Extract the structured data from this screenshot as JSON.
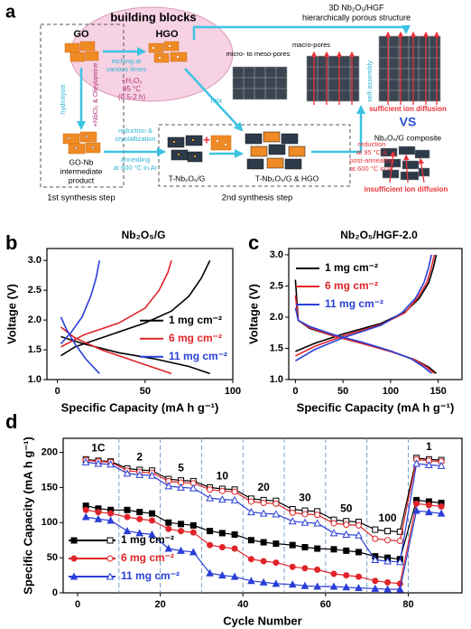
{
  "diagram": {
    "panel": "a",
    "texts": [
      "building blocks",
      "GO",
      "HGO",
      "etching at",
      "various times",
      "+H₂O₂",
      "95 °C",
      "(0.5-2 h)",
      "hydrolysis",
      "+NbCl₅ & Oleylamine",
      "GO-Nb",
      "intermediate",
      "product",
      "reduction &",
      "crystallization",
      "annealing",
      "at 600 °C in Ar",
      "mix",
      "1st synthesis step",
      "2nd synthesis step",
      "T-Nb₂O₅/G",
      "T-Nb₂O₅/G & HGO",
      "3D Nb₂O₅/HGF",
      "hierarchically porous structure",
      "micro- to meso-pores",
      "macro-pores",
      "sufficient ion diffusion",
      "VS",
      "Nb₂O₅/G composite",
      "insufficient ion diffusion",
      "self-assembly",
      "reduction",
      "at 95 °C &",
      "post-annealing",
      "at 600 °C in Ar",
      "+"
    ]
  },
  "chart_data": [
    {
      "panel": "b",
      "type": "line",
      "title": "Nb₂O₅/G",
      "x_label": "Specific Capacity (mA h g⁻¹)",
      "y_label": "Voltage (V)",
      "xlim": [
        -6,
        100
      ],
      "xticks": [
        0,
        50,
        100
      ],
      "ylim": [
        1,
        3.2
      ],
      "yticks": [
        {
          "value": 1,
          "label": "1.0"
        },
        1.5,
        {
          "value": 2,
          "label": "2.0"
        },
        2.5,
        {
          "value": 3,
          "label": "3.0"
        }
      ],
      "legend": "right",
      "series": [
        {
          "name": "1 mg cm⁻²",
          "color": "#000000",
          "x": [
            2,
            15,
            35,
            55,
            75,
            87,
            null,
            2,
            10,
            30,
            50,
            65,
            75,
            82,
            87
          ],
          "values": [
            1.72,
            1.6,
            1.45,
            1.35,
            1.22,
            1.1,
            null,
            1.4,
            1.55,
            1.75,
            1.95,
            2.15,
            2.4,
            2.7,
            3.0
          ]
        },
        {
          "name": "6 mg cm⁻²",
          "color": "#e0242a",
          "x": [
            2,
            10,
            25,
            45,
            65,
            null,
            2,
            15,
            35,
            50,
            58,
            63,
            65
          ],
          "values": [
            1.88,
            1.7,
            1.5,
            1.3,
            1.1,
            null,
            1.55,
            1.75,
            1.95,
            2.2,
            2.5,
            2.8,
            3.0
          ]
        },
        {
          "name": "11 mg cm⁻²",
          "color": "#2a3fd6",
          "x": [
            2,
            5,
            10,
            16,
            24,
            null,
            2,
            8,
            14,
            19,
            22,
            24
          ],
          "values": [
            2.05,
            1.85,
            1.6,
            1.35,
            1.1,
            null,
            1.6,
            1.8,
            2.05,
            2.4,
            2.7,
            3.0
          ]
        }
      ]
    },
    {
      "panel": "c",
      "type": "line",
      "title": "Nb₂O₅/HGF-2.0",
      "x_label": "Specific Capacity (mA h g⁻¹)",
      "y_label": "Voltage (V)",
      "xlim": [
        -7,
        175
      ],
      "xticks": [
        0,
        50,
        100,
        150
      ],
      "ylim": [
        1,
        3.1
      ],
      "yticks": [
        {
          "value": 1,
          "label": "1.0"
        },
        1.5,
        {
          "value": 2,
          "label": "2.0"
        },
        2.5,
        {
          "value": 3,
          "label": "3.0"
        }
      ],
      "legend": "upper left",
      "series": [
        {
          "name": "1 mg cm⁻²",
          "color": "#000000",
          "x": [
            0,
            3,
            15,
            40,
            70,
            100,
            125,
            140,
            148,
            null,
            0,
            20,
            50,
            90,
            115,
            130,
            140,
            145,
            148
          ],
          "values": [
            2.6,
            1.95,
            1.82,
            1.7,
            1.58,
            1.45,
            1.32,
            1.2,
            1.1,
            null,
            1.45,
            1.58,
            1.73,
            1.9,
            2.08,
            2.3,
            2.55,
            2.8,
            3.0
          ]
        },
        {
          "name": "6 mg cm⁻²",
          "color": "#e0242a",
          "x": [
            0,
            3,
            15,
            40,
            70,
            100,
            125,
            138,
            146,
            null,
            0,
            20,
            50,
            90,
            115,
            128,
            138,
            143,
            146
          ],
          "values": [
            2.35,
            1.95,
            1.83,
            1.7,
            1.58,
            1.45,
            1.32,
            1.2,
            1.1,
            null,
            1.38,
            1.53,
            1.7,
            1.88,
            2.07,
            2.3,
            2.55,
            2.8,
            3.0
          ]
        },
        {
          "name": "11 mg cm⁻²",
          "color": "#2a3fd6",
          "x": [
            0,
            3,
            15,
            40,
            70,
            100,
            122,
            135,
            143,
            null,
            0,
            20,
            50,
            90,
            112,
            126,
            135,
            140,
            143
          ],
          "values": [
            2.15,
            1.95,
            1.85,
            1.72,
            1.6,
            1.46,
            1.33,
            1.2,
            1.1,
            null,
            1.3,
            1.48,
            1.67,
            1.87,
            2.07,
            2.3,
            2.55,
            2.8,
            3.0
          ]
        }
      ]
    },
    {
      "panel": "d",
      "type": "line",
      "x_label": "Cycle Number",
      "y_label": "Specific Capacity (mA h g⁻¹)",
      "xlim": [
        -3.5,
        93
      ],
      "xticks": [
        0,
        20,
        40,
        60,
        80
      ],
      "ylim": [
        0,
        220
      ],
      "yticks": [
        0,
        50,
        100,
        150,
        200
      ],
      "legend": "lower left",
      "rate_labels": [
        "1C",
        "2",
        "5",
        "10",
        "20",
        "30",
        "50",
        "100",
        "1"
      ],
      "x": [
        2,
        5,
        8,
        12,
        15,
        18,
        22,
        25,
        28,
        32,
        35,
        38,
        42,
        45,
        48,
        52,
        55,
        58,
        62,
        65,
        68,
        72,
        75,
        78,
        82,
        85,
        88
      ],
      "series": [
        {
          "name": "1 mg cm⁻²",
          "color": "#000000",
          "marker": "square",
          "values": [
            124,
            120,
            118,
            118,
            115,
            113,
            100,
            98,
            96,
            88,
            85,
            83,
            75,
            72,
            70,
            68,
            65,
            63,
            62,
            60,
            58,
            52,
            50,
            48,
            132,
            130,
            128
          ],
          "open_values": [
            190,
            188,
            187,
            177,
            175,
            174,
            162,
            160,
            159,
            150,
            148,
            147,
            134,
            132,
            131,
            119,
            117,
            116,
            104,
            102,
            101,
            90,
            88,
            87,
            192,
            190,
            189
          ]
        },
        {
          "name": "6 mg cm⁻²",
          "color": "#e0242a",
          "marker": "circle",
          "values": [
            118,
            115,
            113,
            108,
            105,
            103,
            91,
            88,
            86,
            68,
            65,
            63,
            48,
            45,
            43,
            37,
            35,
            33,
            27,
            25,
            23,
            17,
            15,
            13,
            127,
            125,
            123
          ],
          "open_values": [
            189,
            187,
            186,
            174,
            172,
            171,
            159,
            157,
            156,
            147,
            145,
            144,
            130,
            128,
            127,
            114,
            112,
            111,
            99,
            97,
            96,
            77,
            75,
            74,
            190,
            188,
            187
          ]
        },
        {
          "name": "11 mg cm⁻²",
          "color": "#2a3fd6",
          "marker": "triangle",
          "values": [
            108,
            105,
            103,
            88,
            85,
            83,
            63,
            60,
            58,
            28,
            25,
            23,
            17,
            15,
            13,
            12,
            10,
            9,
            9,
            8,
            7,
            6,
            5,
            5,
            117,
            115,
            113
          ],
          "open_values": [
            186,
            184,
            183,
            170,
            168,
            167,
            152,
            150,
            149,
            135,
            133,
            132,
            115,
            113,
            112,
            102,
            100,
            99,
            85,
            83,
            82,
            47,
            45,
            44,
            184,
            182,
            181
          ]
        }
      ]
    }
  ]
}
